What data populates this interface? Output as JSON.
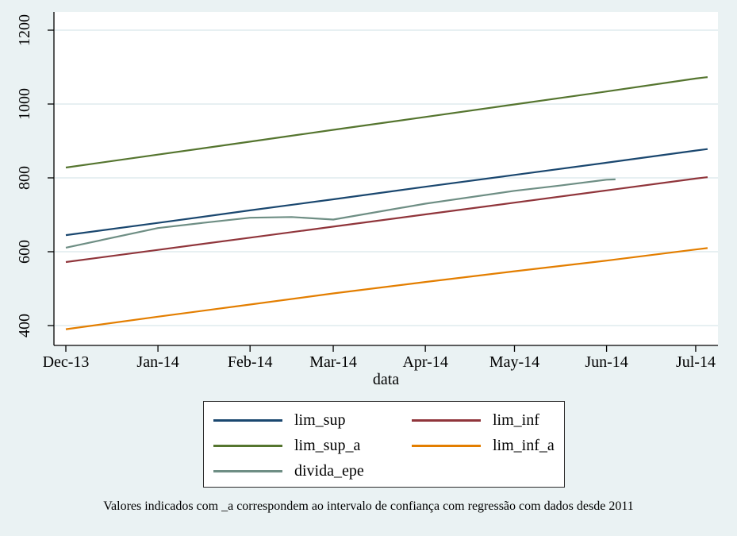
{
  "note": "Valores indicados com _a correspondem ao intervalo de confiança com regressão com dados desde 2011",
  "colors": {
    "background": "#eaf2f3",
    "plot_bg": "#ffffff",
    "gridline": "#dfebee",
    "axis": "#000000",
    "legend_bg": "#ffffff",
    "legend_border": "#2b2b2b",
    "text": "#000000"
  },
  "chart_data": {
    "type": "line",
    "title": "",
    "xlabel": "data",
    "ylabel": "",
    "grid": true,
    "legend_position": "below-center-boxed",
    "y_ticks": [
      400,
      600,
      800,
      1000,
      1200
    ],
    "ylim": [
      346,
      1249
    ],
    "x_ticks_days": [
      0,
      31,
      62,
      90,
      121,
      151,
      182,
      212
    ],
    "x_ticklabels": [
      "Dec-13",
      "Jan-14",
      "Feb-14",
      "Mar-14",
      "Apr-14",
      "May-14",
      "Jun-14",
      "Jul-14"
    ],
    "xlim_days": [
      -4,
      219.5
    ],
    "series": [
      {
        "name": "lim_sup",
        "color": "#1a476f",
        "points": [
          [
            0,
            645
          ],
          [
            31,
            678
          ],
          [
            62,
            712
          ],
          [
            90,
            742
          ],
          [
            121,
            776
          ],
          [
            151,
            808
          ],
          [
            182,
            841
          ],
          [
            212,
            874
          ],
          [
            216,
            878
          ]
        ]
      },
      {
        "name": "lim_inf",
        "color": "#90353b",
        "points": [
          [
            0,
            572
          ],
          [
            31,
            605
          ],
          [
            62,
            638
          ],
          [
            90,
            668
          ],
          [
            121,
            701
          ],
          [
            151,
            733
          ],
          [
            182,
            766
          ],
          [
            212,
            798
          ],
          [
            216,
            802
          ]
        ]
      },
      {
        "name": "lim_sup_a",
        "color": "#55752f",
        "points": [
          [
            0,
            828
          ],
          [
            31,
            863
          ],
          [
            62,
            898
          ],
          [
            90,
            930
          ],
          [
            121,
            965
          ],
          [
            151,
            999
          ],
          [
            182,
            1034
          ],
          [
            212,
            1069
          ],
          [
            216,
            1073
          ]
        ]
      },
      {
        "name": "lim_inf_a",
        "color": "#e37e00",
        "points": [
          [
            0,
            390
          ],
          [
            31,
            424
          ],
          [
            62,
            457
          ],
          [
            90,
            487
          ],
          [
            121,
            518
          ],
          [
            151,
            547
          ],
          [
            182,
            576
          ],
          [
            212,
            606
          ],
          [
            216,
            610
          ]
        ]
      },
      {
        "name": "divida_epe",
        "color": "#6e8e84",
        "points": [
          [
            0,
            611
          ],
          [
            31,
            664
          ],
          [
            46,
            678
          ],
          [
            62,
            692
          ],
          [
            76,
            694
          ],
          [
            90,
            687
          ],
          [
            121,
            730
          ],
          [
            151,
            765
          ],
          [
            166,
            779
          ],
          [
            182,
            795
          ],
          [
            185,
            796
          ]
        ]
      }
    ]
  }
}
